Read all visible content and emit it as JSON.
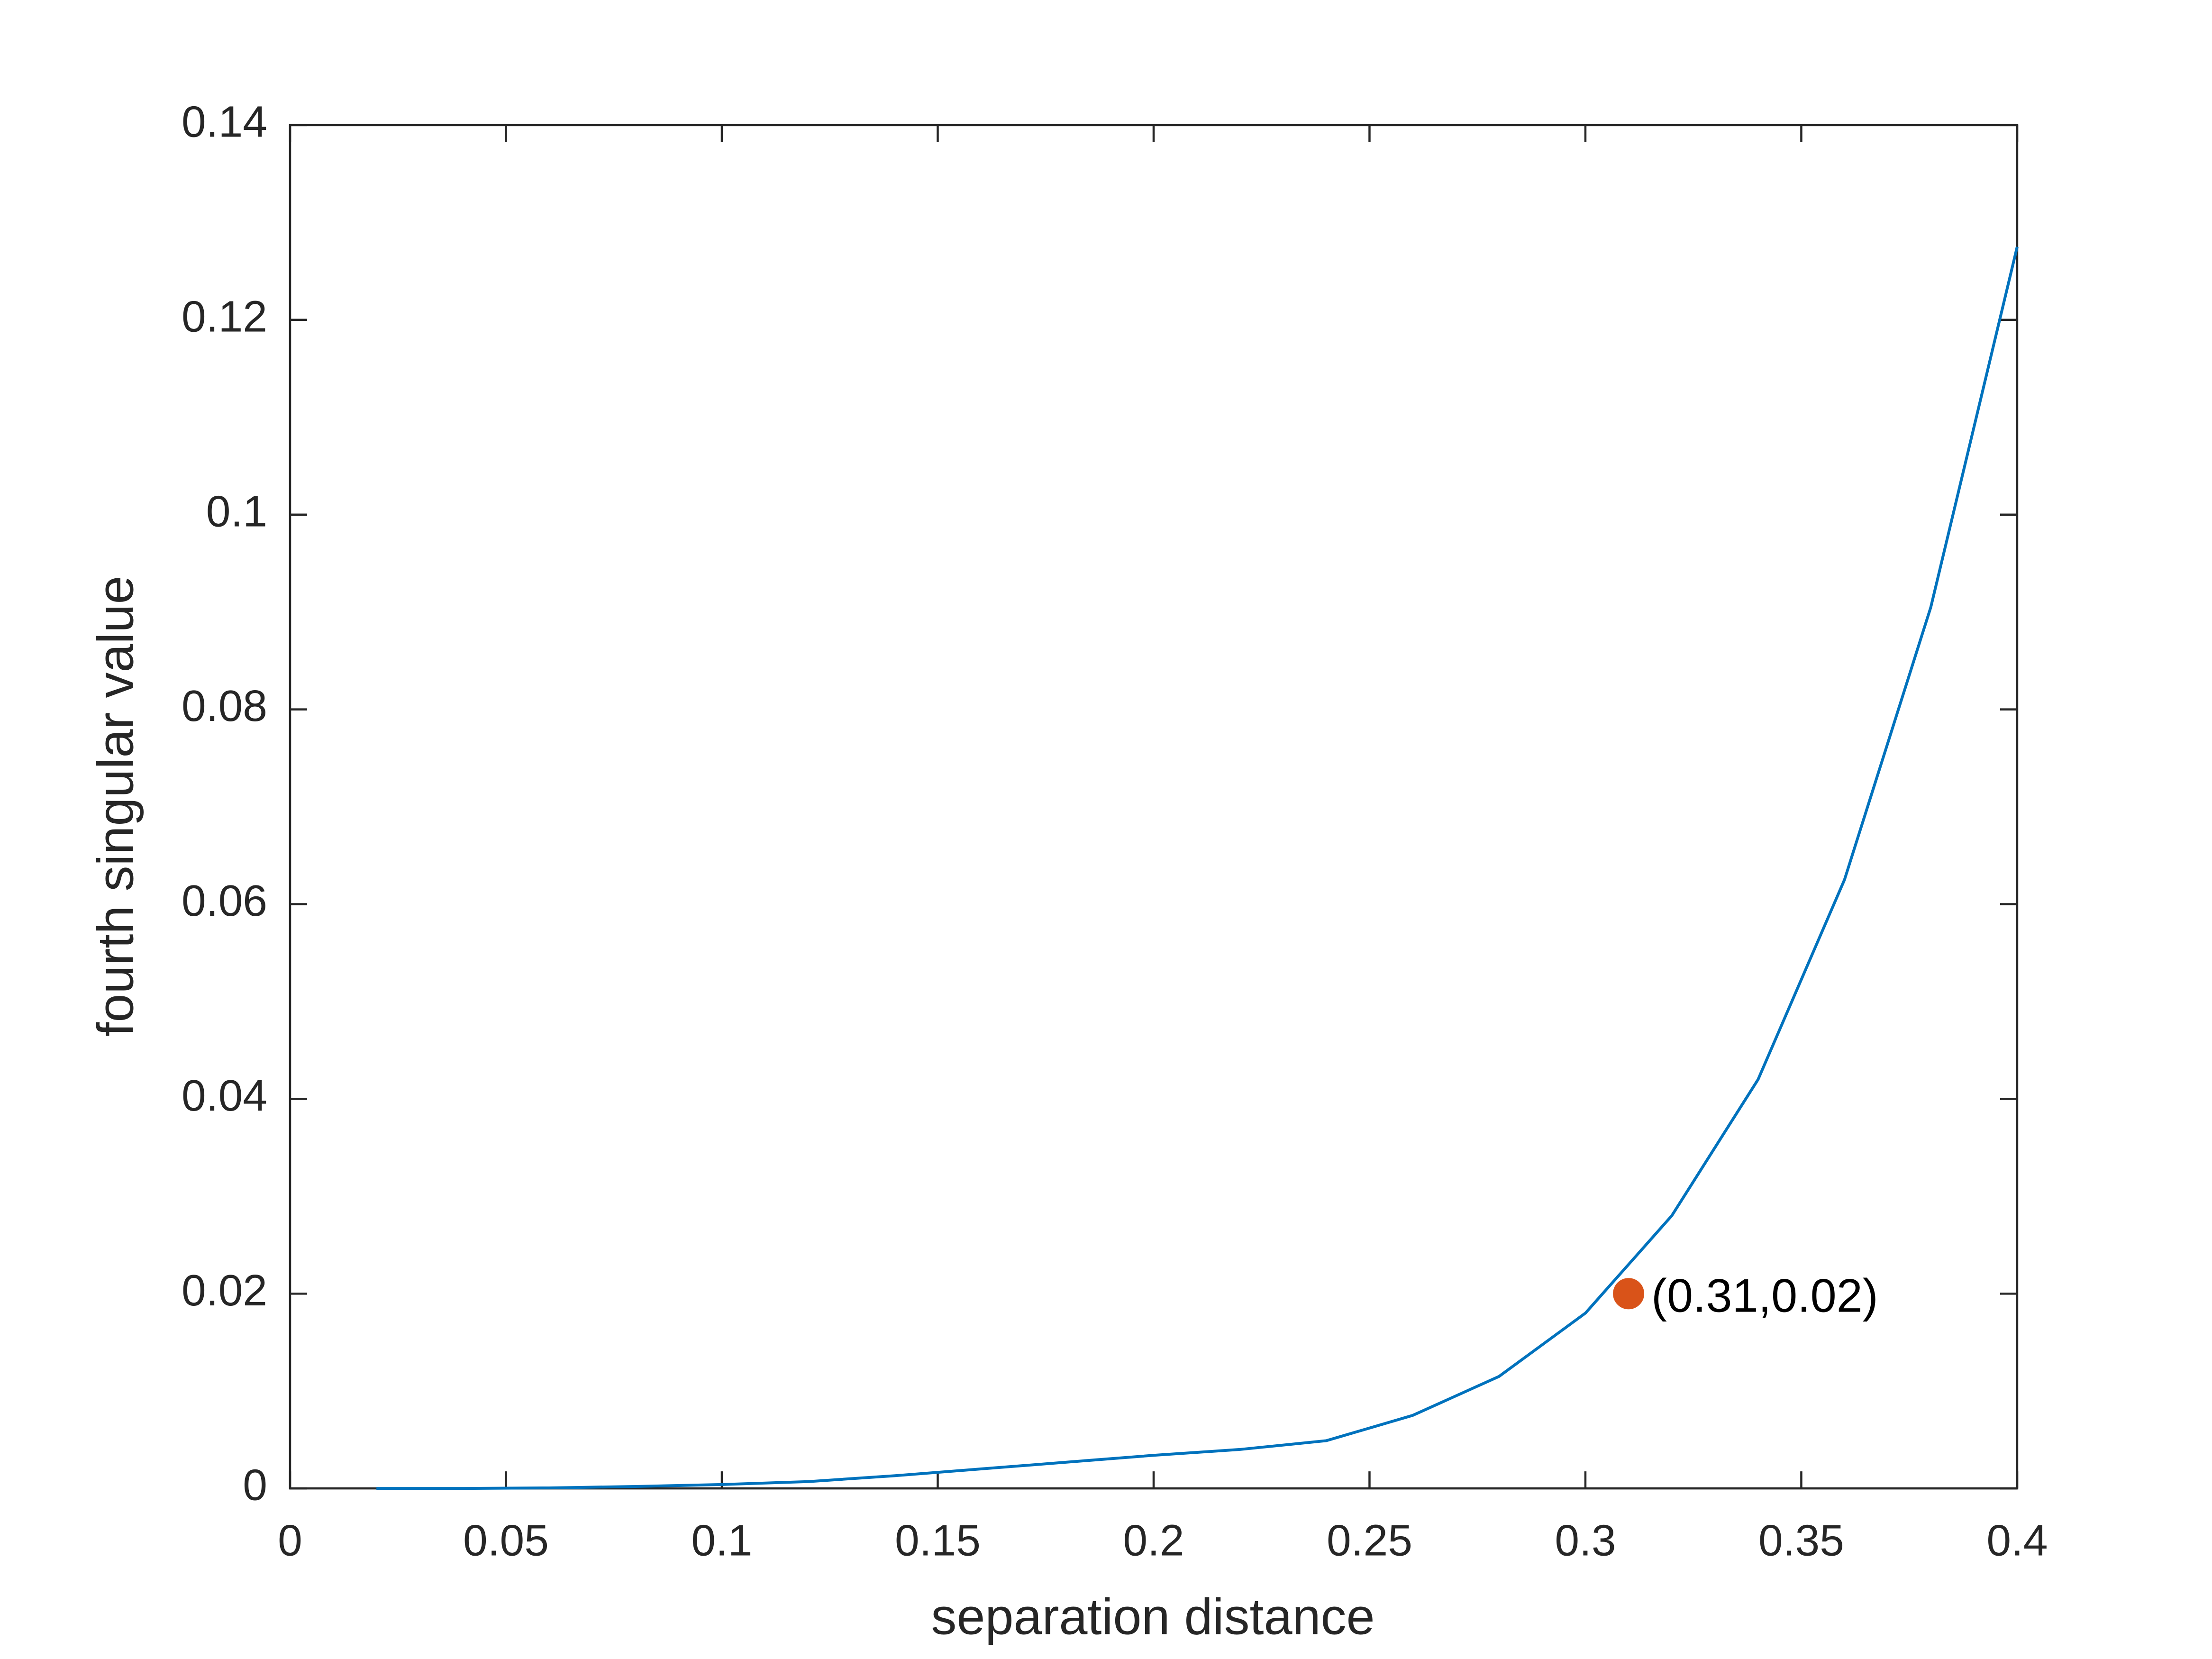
{
  "chart_data": {
    "type": "line",
    "x_label": "separation distance",
    "y_label": "fourth singular value",
    "x": [
      0.02,
      0.04,
      0.06,
      0.08,
      0.1,
      0.12,
      0.14,
      0.16,
      0.18,
      0.2,
      0.22,
      0.24,
      0.26,
      0.28,
      0.3,
      0.32,
      0.34,
      0.36,
      0.38,
      0.4
    ],
    "series": [
      {
        "color": "#0072bd",
        "values": [
          0,
          0,
          5e-05,
          0.0002,
          0.0004,
          0.0007,
          0.0013,
          0.002,
          0.0027,
          0.0034,
          0.004,
          0.0049,
          0.0075,
          0.0115,
          0.018,
          0.028,
          0.042,
          0.0625,
          0.0905,
          0.1275
        ]
      }
    ],
    "annotations": [
      {
        "x": 0.31,
        "y": 0.02,
        "label": "(0.31,0.02)",
        "color": "#d95319"
      }
    ],
    "xlim": [
      0,
      0.4
    ],
    "xticks": [
      0,
      0.05,
      0.1,
      0.15,
      0.2,
      0.25,
      0.3,
      0.35,
      0.4
    ],
    "ylim": [
      0,
      0.14
    ],
    "yticks": [
      0,
      0.02,
      0.04,
      0.06,
      0.08,
      0.1,
      0.12,
      0.14
    ],
    "grid": false
  }
}
